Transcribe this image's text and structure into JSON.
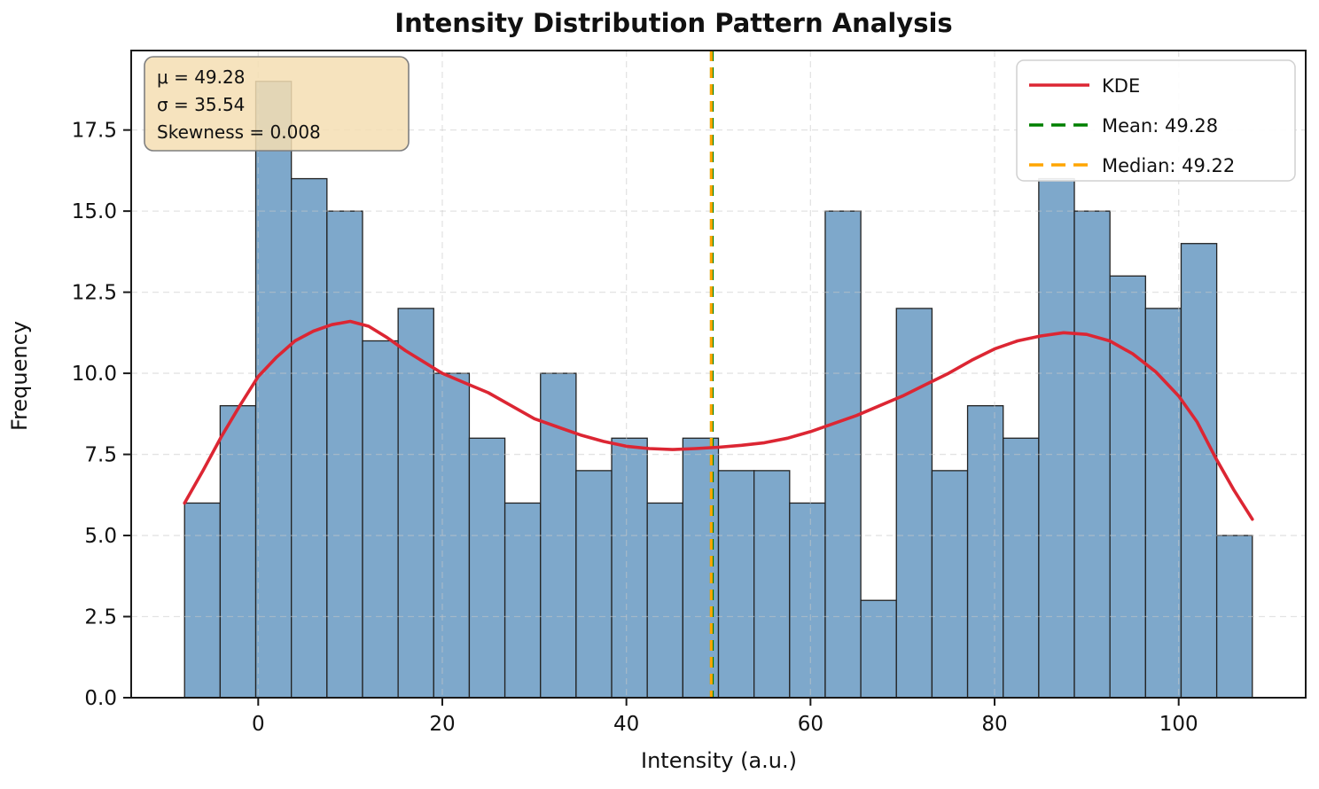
{
  "chart_data": {
    "type": "bar",
    "subtype": "histogram",
    "title": "Intensity Distribution Pattern Analysis",
    "xlabel": "Intensity (a.u.)",
    "ylabel": "Frequency",
    "xlim": [
      -13.8,
      113.8
    ],
    "ylim": [
      0,
      19.95
    ],
    "x_ticks": [
      0,
      20,
      40,
      60,
      80,
      100
    ],
    "x_tick_labels": [
      "0",
      "20",
      "40",
      "60",
      "80",
      "100"
    ],
    "y_ticks": [
      0,
      2.5,
      5,
      7.5,
      10,
      12.5,
      15,
      17.5
    ],
    "y_tick_labels": [
      "0.0",
      "2.5",
      "5.0",
      "7.5",
      "10.0",
      "12.5",
      "15.0",
      "17.5"
    ],
    "grid": true,
    "bin_start": -8,
    "bin_end": 108,
    "bin_count": 30,
    "counts": [
      6,
      9,
      19,
      16,
      15,
      11,
      12,
      10,
      8,
      6,
      10,
      7,
      8,
      6,
      8,
      7,
      7,
      6,
      15,
      3,
      12,
      7,
      9,
      8,
      16,
      15,
      13,
      12,
      14,
      5
    ],
    "bar_fill": "#7ea8cb",
    "bar_edge": "#222222",
    "kde": {
      "label": "KDE",
      "color": "#dc2633",
      "points": [
        [
          -8,
          6.0
        ],
        [
          -6,
          7.0
        ],
        [
          -4,
          8.05
        ],
        [
          -2,
          9.0
        ],
        [
          0,
          9.9
        ],
        [
          2,
          10.5
        ],
        [
          4,
          11.0
        ],
        [
          6,
          11.3
        ],
        [
          8,
          11.5
        ],
        [
          10,
          11.6
        ],
        [
          12,
          11.45
        ],
        [
          14,
          11.1
        ],
        [
          16,
          10.7
        ],
        [
          18,
          10.35
        ],
        [
          20,
          10.0
        ],
        [
          22.5,
          9.7
        ],
        [
          25,
          9.4
        ],
        [
          27.5,
          9.0
        ],
        [
          30,
          8.6
        ],
        [
          32.5,
          8.35
        ],
        [
          35,
          8.1
        ],
        [
          37.5,
          7.9
        ],
        [
          40,
          7.75
        ],
        [
          42.5,
          7.68
        ],
        [
          45,
          7.65
        ],
        [
          47.5,
          7.68
        ],
        [
          50,
          7.72
        ],
        [
          52.5,
          7.78
        ],
        [
          55,
          7.86
        ],
        [
          57.5,
          8.0
        ],
        [
          60,
          8.2
        ],
        [
          62.5,
          8.45
        ],
        [
          65,
          8.7
        ],
        [
          67.5,
          9.0
        ],
        [
          70,
          9.3
        ],
        [
          72.5,
          9.65
        ],
        [
          75,
          10.0
        ],
        [
          77.5,
          10.4
        ],
        [
          80,
          10.75
        ],
        [
          82.5,
          11.0
        ],
        [
          85,
          11.15
        ],
        [
          87.5,
          11.25
        ],
        [
          90,
          11.2
        ],
        [
          92.5,
          11.0
        ],
        [
          95,
          10.6
        ],
        [
          97.5,
          10.05
        ],
        [
          100,
          9.3
        ],
        [
          102,
          8.5
        ],
        [
          104,
          7.4
        ],
        [
          106,
          6.4
        ],
        [
          108,
          5.5
        ]
      ]
    },
    "mean": {
      "value": 49.28,
      "label": "Mean: 49.28",
      "color": "#008000"
    },
    "median": {
      "value": 49.22,
      "label": "Median: 49.22",
      "color": "#ffa500"
    },
    "stats_box": {
      "lines": [
        "μ = 49.28",
        "σ = 35.54",
        "Skewness = 0.008"
      ],
      "bg": "#f5deb3",
      "border": "#7f7f7f"
    },
    "legend": [
      {
        "label": "KDE",
        "color": "#dc2633",
        "dashed": false
      },
      {
        "label": "Mean: 49.28",
        "color": "#008000",
        "dashed": true
      },
      {
        "label": "Median: 49.22",
        "color": "#ffa500",
        "dashed": true
      }
    ],
    "legend_position": "upper right",
    "grid_color": "#c8c8c8"
  }
}
